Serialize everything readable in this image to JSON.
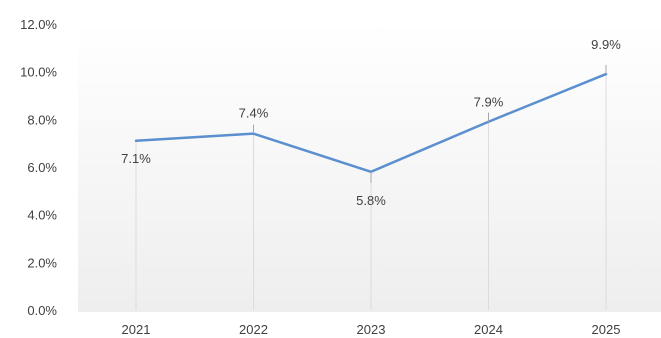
{
  "chart_data": {
    "type": "line",
    "title": "",
    "xlabel": "",
    "ylabel": "",
    "categories": [
      "2021",
      "2022",
      "2023",
      "2024",
      "2025"
    ],
    "series": [
      {
        "values": [
          7.1,
          7.4,
          5.8,
          7.9,
          9.9
        ]
      }
    ],
    "data_labels": [
      "7.1%",
      "7.4%",
      "5.8%",
      "7.9%",
      "9.9%"
    ],
    "ylim": [
      0,
      12
    ],
    "yticks": [
      0,
      2,
      4,
      6,
      8,
      10,
      12
    ],
    "ytick_labels": [
      "0.0%",
      "2.0%",
      "4.0%",
      "6.0%",
      "8.0%",
      "10.0%",
      "12.0%"
    ],
    "grid": false,
    "legend": "none",
    "colors": {
      "line": "#5B8FCF",
      "label": "#404040"
    }
  }
}
